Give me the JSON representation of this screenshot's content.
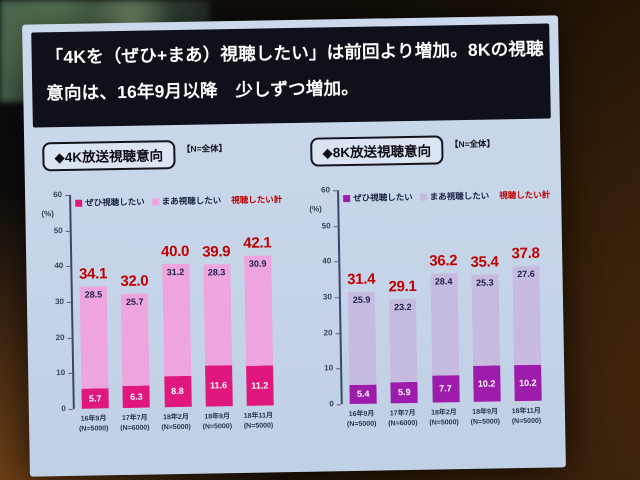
{
  "headline": {
    "line1": "「4Kを（ぜひ+まあ）視聴したい」は前回より増加。8Kの視聴",
    "line2": "意向は、16年9月以降　少しずつ増加。"
  },
  "chart_data": [
    {
      "type": "bar",
      "stacked": true,
      "title": "◆4K放送視聴意向",
      "n_label": "【N=全体】",
      "ylabel": "(%)",
      "ylim": [
        0,
        60
      ],
      "yticks": [
        0,
        10,
        20,
        30,
        40,
        50,
        60
      ],
      "legend_position": "top",
      "categories": [
        "16年9月",
        "17年7月",
        "18年2月",
        "18年9月",
        "18年11月"
      ],
      "sample_labels": [
        "(N=5000)",
        "(N=6000)",
        "(N=5000)",
        "(N=5000)",
        "(N=5000)"
      ],
      "series": [
        {
          "name": "ぜひ視聴したい",
          "color": "#e0187d",
          "label_color": "#ffffff",
          "values": [
            "5.7",
            "6.3",
            "8.8",
            "11.6",
            "11.2"
          ]
        },
        {
          "name": "まあ視聴したい",
          "color": "#eea4dd",
          "label_color": "#1b1f4e",
          "values": [
            "28.5",
            "25.7",
            "31.2",
            "28.3",
            "30.9"
          ]
        }
      ],
      "total": {
        "name": "視聴したい計",
        "color": "#c00000",
        "values": [
          "34.1",
          "32.0",
          "40.0",
          "39.9",
          "42.1"
        ]
      }
    },
    {
      "type": "bar",
      "stacked": true,
      "title": "◆8K放送視聴意向",
      "n_label": "【N=全体】",
      "ylabel": "(%)",
      "ylim": [
        0,
        60
      ],
      "yticks": [
        0,
        10,
        20,
        30,
        40,
        50,
        60
      ],
      "legend_position": "top",
      "categories": [
        "16年9月",
        "17年7月",
        "18年2月",
        "18年9月",
        "18年11月"
      ],
      "sample_labels": [
        "(N=5000)",
        "(N=6000)",
        "(N=5000)",
        "(N=5000)",
        "(N=5000)"
      ],
      "series": [
        {
          "name": "ぜひ視聴したい",
          "color": "#9e1cab",
          "label_color": "#ffffff",
          "values": [
            "5.4",
            "5.9",
            "7.7",
            "10.2",
            "10.2"
          ]
        },
        {
          "name": "まあ視聴したい",
          "color": "#c7badf",
          "label_color": "#1b1f4e",
          "values": [
            "25.9",
            "23.2",
            "28.4",
            "25.3",
            "27.6"
          ]
        }
      ],
      "total": {
        "name": "視聴したい計",
        "color": "#c00000",
        "values": [
          "31.4",
          "29.1",
          "36.2",
          "35.4",
          "37.8"
        ]
      }
    }
  ]
}
